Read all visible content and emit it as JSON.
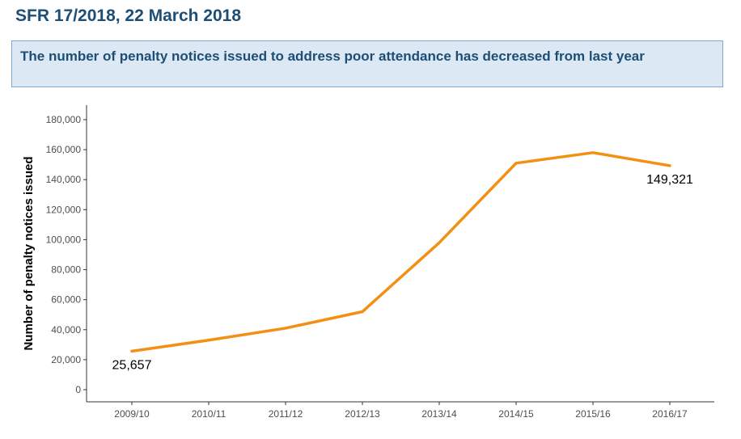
{
  "header": {
    "title": "SFR 17/2018, 22 March 2018",
    "headline": "The number of penalty notices issued to address poor attendance has decreased from last year"
  },
  "colors": {
    "line": "#f39014",
    "title": "#1d4e75",
    "headline_bg": "#dce9f5",
    "headline_border": "#7fa9cf"
  },
  "chart_data": {
    "type": "line",
    "title": "",
    "xlabel": "",
    "ylabel": "Number of penalty notices issued",
    "categories": [
      "2009/10",
      "2010/11",
      "2011/12",
      "2012/13",
      "2013/14",
      "2014/15",
      "2015/16",
      "2016/17"
    ],
    "series": [
      {
        "values": [
          25657,
          33000,
          41000,
          52000,
          98000,
          151000,
          158000,
          149321
        ]
      }
    ],
    "ylim": [
      0,
      180000
    ],
    "yticks": [
      0,
      20000,
      40000,
      60000,
      80000,
      100000,
      120000,
      140000,
      160000,
      180000
    ],
    "ytick_labels": [
      "0",
      "20,000",
      "40,000",
      "60,000",
      "80,000",
      "100,000",
      "120,000",
      "140,000",
      "160,000",
      "180,000"
    ],
    "grid": false,
    "annotations": [
      {
        "category": "2009/10",
        "text": "25,657",
        "position": "below"
      },
      {
        "category": "2016/17",
        "text": "149,321",
        "position": "below"
      }
    ]
  }
}
